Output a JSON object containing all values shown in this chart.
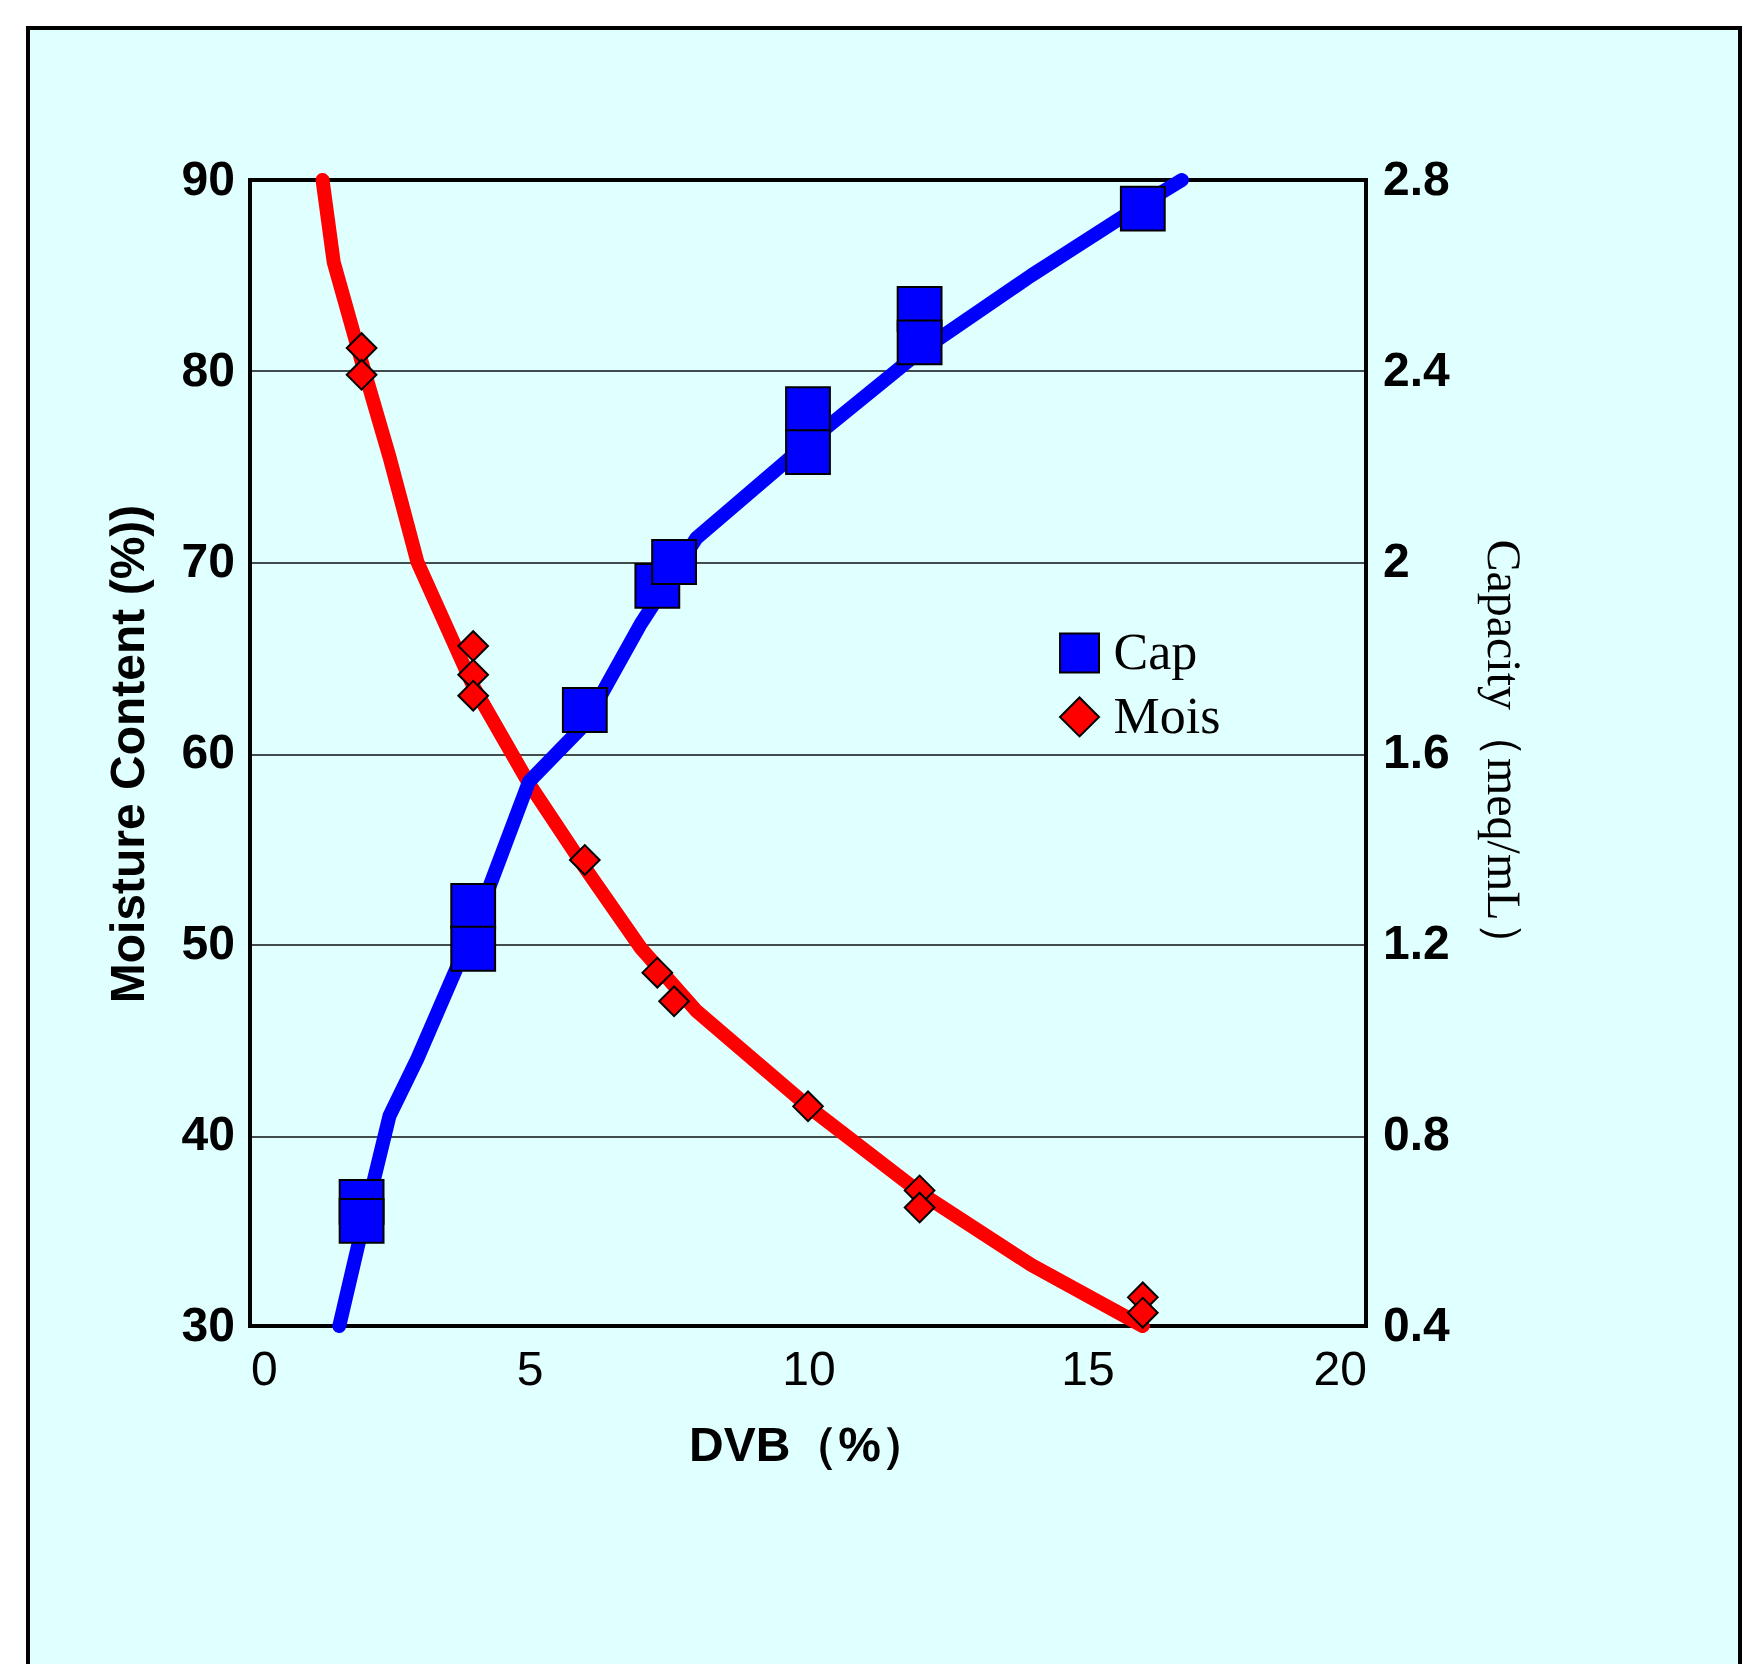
{
  "chart_data": {
    "type": "scatter",
    "xlabel": "DVB（%）",
    "ylabel": "Moisture Content (%))",
    "y2label": "Capacity（meq/mL）",
    "xlim": [
      0,
      20
    ],
    "xticks": [
      0,
      5,
      10,
      15,
      20
    ],
    "ylim": [
      30,
      90
    ],
    "yticks": [
      30,
      40,
      50,
      60,
      70,
      80,
      90
    ],
    "y2lim": [
      0.4,
      2.8
    ],
    "y2ticks": [
      0.4,
      0.8,
      1.2,
      1.6,
      2,
      2.4,
      2.8
    ],
    "grid": "y",
    "legend": "right",
    "series": [
      {
        "type": "line",
        "axis": "y2",
        "color": "#0000ff",
        "marker": "none",
        "line_style": "solid",
        "x": [
          1.6,
          2,
          2.5,
          3,
          4,
          5,
          6,
          7,
          8,
          10,
          12,
          14,
          16,
          16.7
        ],
        "values": [
          0.4,
          0.6,
          0.84,
          0.96,
          1.23,
          1.54,
          1.66,
          1.87,
          2.05,
          2.25,
          2.44,
          2.6,
          2.75,
          2.8
        ]
      },
      {
        "type": "line",
        "axis": "y",
        "color": "#ff0000",
        "marker": "none",
        "line_style": "solid",
        "x": [
          1.3,
          1.5,
          2,
          2.5,
          3,
          4,
          5,
          6,
          7,
          8,
          10,
          12,
          14,
          16
        ],
        "values": [
          90,
          85.7,
          80.5,
          75.5,
          70,
          63.5,
          58.4,
          54,
          49.8,
          46.5,
          41.5,
          37,
          33.2,
          30
        ]
      },
      {
        "name": "Cap",
        "axis": "y2",
        "color": "#0000ff",
        "marker": "square",
        "x": [
          2,
          2,
          4,
          4,
          6,
          7.3,
          7.6,
          10,
          10,
          12,
          12,
          16
        ],
        "values": [
          0.66,
          0.62,
          1.28,
          1.19,
          1.69,
          1.95,
          2.0,
          2.32,
          2.23,
          2.53,
          2.46,
          2.74
        ]
      },
      {
        "name": "Mois",
        "axis": "y",
        "color": "#ff0000",
        "marker": "diamond",
        "x": [
          2,
          2,
          4,
          4,
          4,
          6,
          7.3,
          7.6,
          10,
          12,
          12,
          16,
          16
        ],
        "values": [
          81.2,
          79.8,
          65.6,
          64.1,
          63.0,
          54.4,
          48.5,
          47.0,
          41.5,
          37.1,
          36.2,
          31.5,
          30.7
        ]
      }
    ]
  }
}
